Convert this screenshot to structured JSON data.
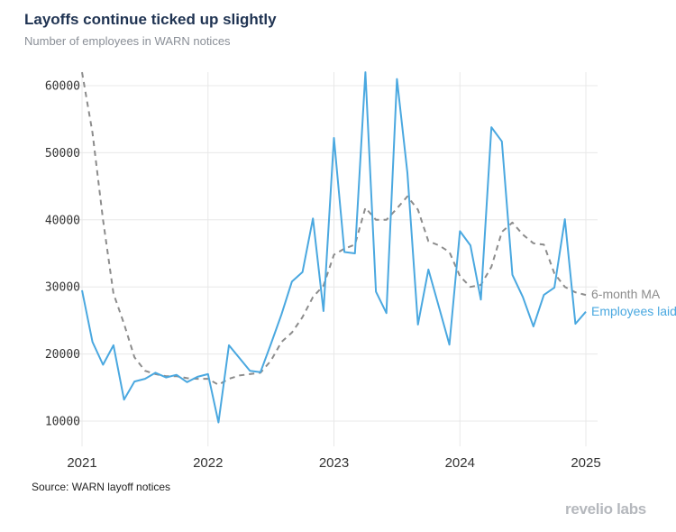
{
  "title": "Layoffs continue ticked up slightly",
  "subtitle": "Number of employees in WARN notices",
  "source": "Source: WARN layoff notices",
  "logo": "revelio labs",
  "colors": {
    "employees": "#4aa8e0",
    "ma": "#8c8c8c",
    "grid": "#e8e8e8",
    "title": "#1f3352"
  },
  "chart_data": {
    "type": "line",
    "x_axis": {
      "type": "date",
      "ticks": [
        "2021",
        "2022",
        "2023",
        "2024",
        "2025"
      ],
      "range": [
        "2021-01",
        "2025-01"
      ]
    },
    "y_axis": {
      "ticks": [
        10000,
        20000,
        30000,
        40000,
        50000,
        60000
      ],
      "ylim": [
        8000,
        62000
      ]
    },
    "grid": true,
    "legend": "end-of-line labels",
    "series": [
      {
        "name": "6-month MA",
        "style": "dashed",
        "x": [
          "2021-01",
          "2021-02",
          "2021-03",
          "2021-04",
          "2021-05",
          "2021-06",
          "2021-07",
          "2021-08",
          "2021-09",
          "2021-10",
          "2021-11",
          "2021-12",
          "2022-01",
          "2022-02",
          "2022-03",
          "2022-04",
          "2022-05",
          "2022-06",
          "2022-07",
          "2022-08",
          "2022-09",
          "2022-10",
          "2022-11",
          "2022-12",
          "2023-01",
          "2023-02",
          "2023-03",
          "2023-04",
          "2023-05",
          "2023-06",
          "2023-07",
          "2023-08",
          "2023-09",
          "2023-10",
          "2023-11",
          "2023-12",
          "2024-01",
          "2024-02",
          "2024-03",
          "2024-04",
          "2024-05",
          "2024-06",
          "2024-07",
          "2024-08",
          "2024-09",
          "2024-10",
          "2024-11",
          "2024-12",
          "2025-01"
        ],
        "values": [
          62000,
          53000,
          40000,
          29000,
          24500,
          19500,
          17500,
          17000,
          16700,
          16700,
          16400,
          16300,
          16300,
          15400,
          16300,
          16800,
          17000,
          17200,
          19000,
          21800,
          23200,
          25500,
          28500,
          30200,
          34800,
          35700,
          36300,
          41800,
          40000,
          40000,
          41700,
          43500,
          41500,
          36800,
          36200,
          35200,
          31600,
          30000,
          30300,
          33000,
          38200,
          39600,
          37800,
          36500,
          36300,
          32000,
          30000,
          29200,
          28800
        ]
      },
      {
        "name": "Employees laid off",
        "style": "solid",
        "x": [
          "2021-01",
          "2021-02",
          "2021-03",
          "2021-04",
          "2021-05",
          "2021-06",
          "2021-07",
          "2021-08",
          "2021-09",
          "2021-10",
          "2021-11",
          "2021-12",
          "2022-01",
          "2022-02",
          "2022-03",
          "2022-04",
          "2022-05",
          "2022-06",
          "2022-07",
          "2022-08",
          "2022-09",
          "2022-10",
          "2022-11",
          "2022-12",
          "2023-01",
          "2023-02",
          "2023-03",
          "2023-04",
          "2023-05",
          "2023-06",
          "2023-07",
          "2023-08",
          "2023-09",
          "2023-10",
          "2023-11",
          "2023-12",
          "2024-01",
          "2024-02",
          "2024-03",
          "2024-04",
          "2024-05",
          "2024-06",
          "2024-07",
          "2024-08",
          "2024-09",
          "2024-10",
          "2024-11",
          "2024-12",
          "2025-01"
        ],
        "values": [
          29500,
          21800,
          18400,
          21300,
          13200,
          15900,
          16300,
          17200,
          16500,
          16900,
          15800,
          16600,
          17000,
          9800,
          21300,
          19400,
          17500,
          17300,
          21500,
          25900,
          30800,
          32200,
          40200,
          26400,
          52200,
          35200,
          35000,
          62000,
          29300,
          26100,
          61000,
          47000,
          24400,
          32600,
          27000,
          21400,
          38300,
          36200,
          28100,
          53800,
          51700,
          31800,
          28500,
          24100,
          28800,
          29900,
          40100,
          24500,
          26300
        ]
      }
    ]
  }
}
